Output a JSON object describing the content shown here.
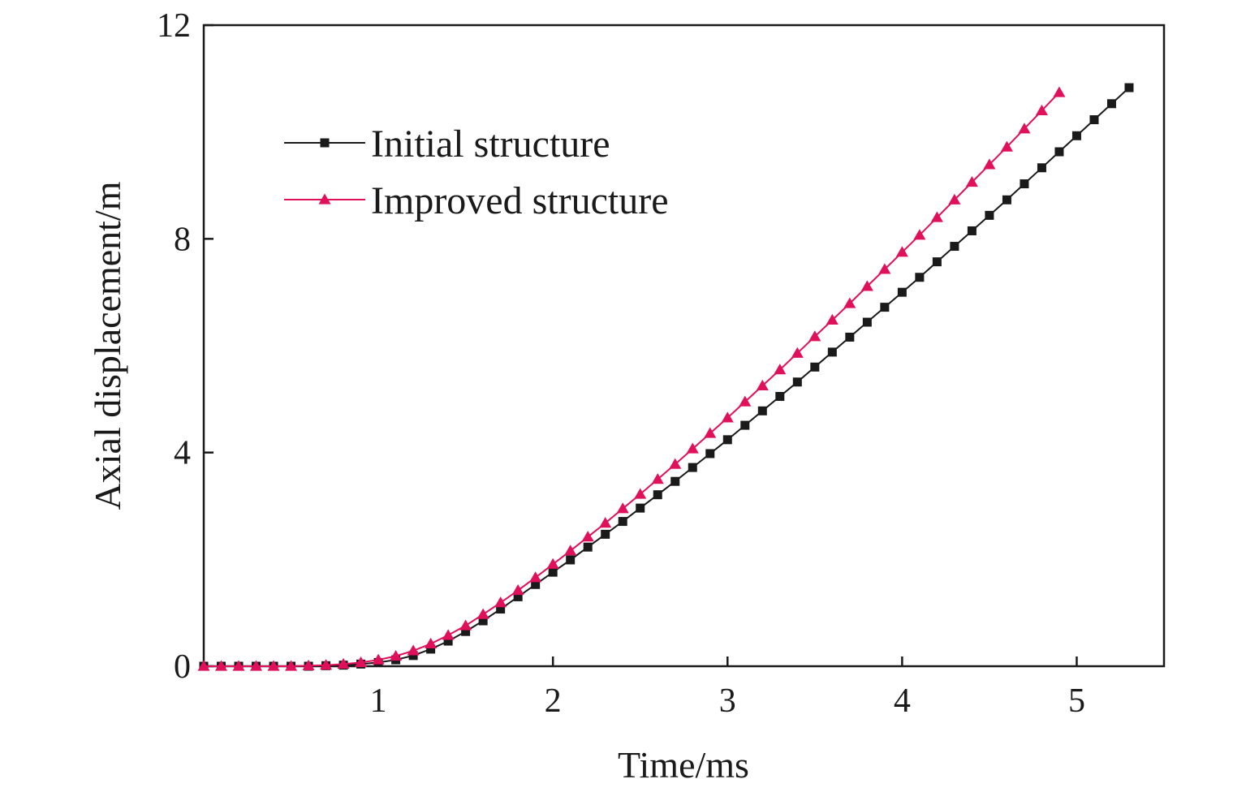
{
  "chart_data": {
    "type": "line",
    "xlabel": "Time/ms",
    "ylabel": "Axial displacement/m",
    "xlim": [
      0,
      5.5
    ],
    "ylim": [
      0,
      12
    ],
    "xticks": [
      1,
      2,
      3,
      4,
      5
    ],
    "yticks": [
      0,
      4,
      8,
      12
    ],
    "grid": false,
    "legend_position": "top-left",
    "series": [
      {
        "name": "Initial structure",
        "color": "#1a1a1a",
        "marker": "square",
        "x": [
          0.0,
          0.1,
          0.2,
          0.3,
          0.4,
          0.5,
          0.6,
          0.7,
          0.8,
          0.9,
          1.0,
          1.1,
          1.2,
          1.3,
          1.4,
          1.5,
          1.6,
          1.7,
          1.8,
          1.9,
          2.0,
          2.1,
          2.2,
          2.3,
          2.4,
          2.5,
          2.6,
          2.7,
          2.8,
          2.9,
          3.0,
          3.1,
          3.2,
          3.3,
          3.4,
          3.5,
          3.6,
          3.7,
          3.8,
          3.9,
          4.0,
          4.1,
          4.2,
          4.3,
          4.4,
          4.5,
          4.6,
          4.7,
          4.8,
          4.9,
          5.0,
          5.1,
          5.2,
          5.3
        ],
        "y": [
          0.0,
          0.0,
          0.0,
          0.0,
          0.0,
          0.0,
          0.0,
          0.01,
          0.02,
          0.04,
          0.07,
          0.12,
          0.2,
          0.32,
          0.47,
          0.65,
          0.85,
          1.07,
          1.3,
          1.53,
          1.76,
          1.99,
          2.23,
          2.47,
          2.71,
          2.96,
          3.21,
          3.46,
          3.72,
          3.98,
          4.24,
          4.51,
          4.78,
          5.05,
          5.32,
          5.6,
          5.88,
          6.16,
          6.44,
          6.72,
          7.0,
          7.28,
          7.57,
          7.86,
          8.15,
          8.44,
          8.73,
          9.03,
          9.33,
          9.63,
          9.93,
          10.23,
          10.53,
          10.83
        ]
      },
      {
        "name": "Improved structure",
        "color": "#e0105a",
        "marker": "triangle",
        "x": [
          0.0,
          0.1,
          0.2,
          0.3,
          0.4,
          0.5,
          0.6,
          0.7,
          0.8,
          0.9,
          1.0,
          1.1,
          1.2,
          1.3,
          1.4,
          1.5,
          1.6,
          1.7,
          1.8,
          1.9,
          2.0,
          2.1,
          2.2,
          2.3,
          2.4,
          2.5,
          2.6,
          2.7,
          2.8,
          2.9,
          3.0,
          3.1,
          3.2,
          3.3,
          3.4,
          3.5,
          3.6,
          3.7,
          3.8,
          3.9,
          4.0,
          4.1,
          4.2,
          4.3,
          4.4,
          4.5,
          4.6,
          4.7,
          4.8,
          4.9
        ],
        "y": [
          0.0,
          0.0,
          0.0,
          0.0,
          0.0,
          0.0,
          0.01,
          0.02,
          0.04,
          0.07,
          0.12,
          0.19,
          0.29,
          0.42,
          0.58,
          0.76,
          0.97,
          1.19,
          1.42,
          1.66,
          1.91,
          2.16,
          2.42,
          2.68,
          2.95,
          3.22,
          3.5,
          3.78,
          4.07,
          4.36,
          4.65,
          4.95,
          5.25,
          5.55,
          5.86,
          6.17,
          6.48,
          6.79,
          7.11,
          7.43,
          7.75,
          8.07,
          8.4,
          8.73,
          9.06,
          9.39,
          9.72,
          10.06,
          10.4,
          10.74
        ]
      }
    ]
  }
}
